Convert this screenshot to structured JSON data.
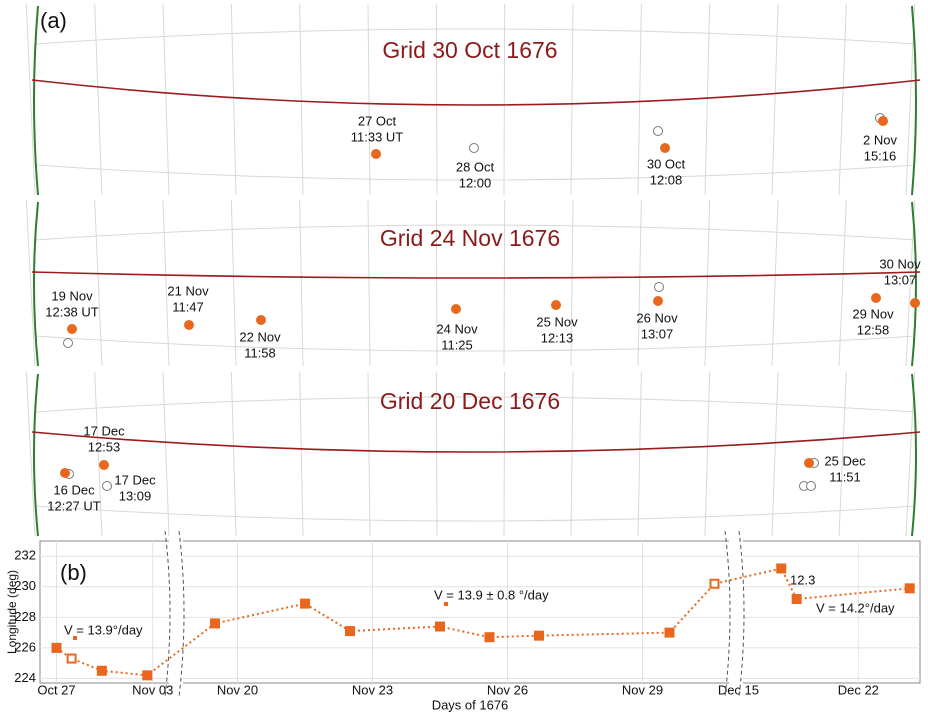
{
  "panel_label_a": "(a)",
  "panel_label_b": "(b)",
  "panels": [
    {
      "title": "Grid 30 Oct 1676",
      "labels": [
        [
          "27  Oct",
          "11:33 UT"
        ],
        [
          "28 Oct",
          "12:00"
        ],
        [
          "30 Oct",
          "12:08"
        ],
        [
          "2 Nov",
          "15:16"
        ]
      ]
    },
    {
      "title": "Grid 24 Nov 1676",
      "labels": [
        [
          "19 Nov",
          "12:38 UT"
        ],
        [
          "21 Nov",
          "11:47"
        ],
        [
          "22 Nov",
          "11:58"
        ],
        [
          "24 Nov",
          "11:25"
        ],
        [
          "25 Nov",
          "12:13"
        ],
        [
          "26 Nov",
          "13:07"
        ],
        [
          "29 Nov",
          "12:58"
        ],
        [
          "30 Nov",
          "13:07"
        ]
      ]
    },
    {
      "title": "Grid 20 Dec 1676",
      "labels": [
        [
          "17 Dec",
          "12:53"
        ],
        [
          "16 Dec",
          "12:27 UT"
        ],
        [
          "17 Dec",
          "13:09"
        ],
        [
          "25 Dec",
          "11:51"
        ]
      ]
    }
  ],
  "chart_data": {
    "type": "line",
    "x_label": "Days of 1676",
    "y_label": "Longitude (deg)",
    "segments": [
      {
        "xlim": [
          299.8,
          309.4
        ],
        "xticks": [
          {
            "value": 301,
            "label": "Oct 27"
          },
          {
            "value": 308,
            "label": "Nov 03"
          }
        ]
      },
      {
        "xlim": [
          323.9,
          335.9
        ],
        "xticks": [
          {
            "value": 325,
            "label": "Nov 20"
          },
          {
            "value": 328,
            "label": "Nov 23"
          },
          {
            "value": 331,
            "label": "Nov 26"
          },
          {
            "value": 334,
            "label": "Nov 29"
          }
        ]
      },
      {
        "xlim": [
          349.8,
          360.6
        ],
        "xticks": [
          {
            "value": 350,
            "label": "Dec 15"
          },
          {
            "value": 357,
            "label": "Dec 22"
          }
        ]
      }
    ],
    "ylim": [
      223.7,
      233
    ],
    "yticks": [
      224,
      226,
      228,
      230,
      232
    ],
    "grid": true,
    "color": "#e8671c",
    "series": [
      {
        "x": [
          301.0,
          302.1,
          304.3,
          307.6,
          324.5,
          326.5,
          327.5,
          329.5,
          330.6,
          331.7,
          334.6,
          335.6,
          352.5,
          353.4,
          360.0
        ],
        "values": [
          226.0,
          225.3,
          224.5,
          224.2,
          227.6,
          228.9,
          227.1,
          227.4,
          226.7,
          226.8,
          227.0,
          230.2,
          231.2,
          229.2,
          229.9
        ],
        "filled": [
          true,
          false,
          true,
          true,
          true,
          true,
          true,
          true,
          true,
          true,
          true,
          false,
          true,
          true,
          true
        ]
      }
    ],
    "annotations": [
      "V = 13.9°/day",
      "V = 13.9 ± 0.8 °/day",
      "12.3",
      "V = 14.2°/day"
    ]
  }
}
